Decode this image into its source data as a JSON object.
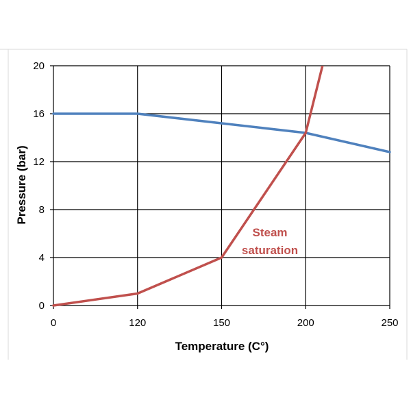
{
  "chart_data": {
    "type": "line",
    "title": "",
    "xlabel": "Temperature (C°)",
    "ylabel": "Pressure (bar)",
    "x_categories": [
      "0",
      "120",
      "150",
      "200",
      "250"
    ],
    "x_scale": "categorical (evenly spaced)",
    "ylim": [
      0,
      20
    ],
    "yticks": [
      "0",
      "4",
      "8",
      "12",
      "16",
      "20"
    ],
    "grid": true,
    "legend": "none",
    "series": [
      {
        "color": "#4f81bd",
        "points": [
          {
            "x": "0",
            "y": 16.0
          },
          {
            "x": "120",
            "y": 16.0
          },
          {
            "x": "150",
            "y": 15.2
          },
          {
            "x": "200",
            "y": 14.4
          },
          {
            "x": "250",
            "y": 12.8
          }
        ]
      },
      {
        "name": "Steam saturation",
        "color": "#c0504d",
        "points": [
          {
            "x": "0",
            "y": 0.0
          },
          {
            "x": "120",
            "y": 1.0
          },
          {
            "x": "150",
            "y": 4.0
          },
          {
            "x": "200",
            "y": 14.4
          },
          {
            "x": "210",
            "y": 20.0
          }
        ]
      }
    ],
    "annotations": [
      {
        "line1": "Steam",
        "line2": "saturation",
        "color": "#c0504d"
      }
    ]
  }
}
